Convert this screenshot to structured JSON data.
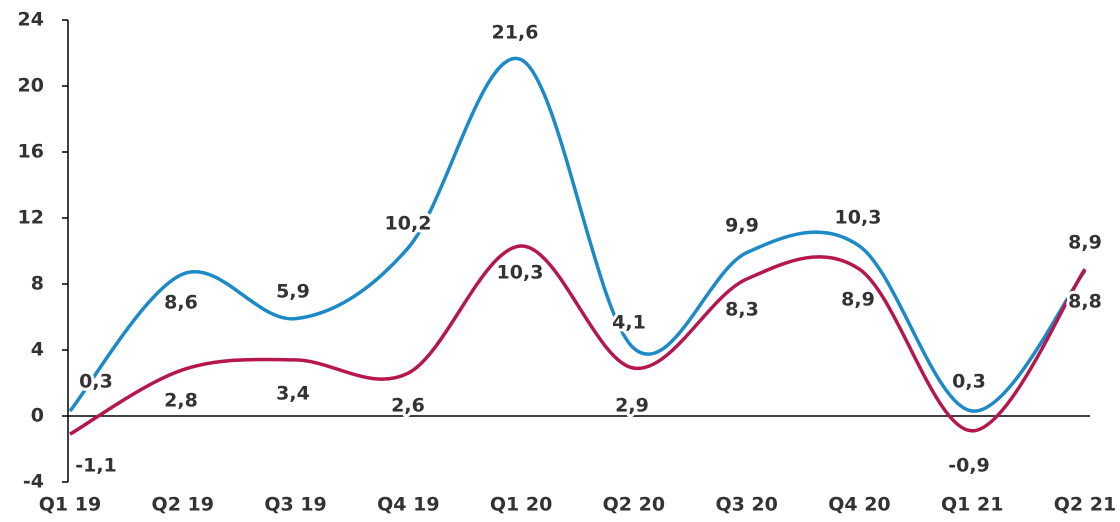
{
  "chart_data": {
    "type": "line",
    "categories": [
      "Q1 19",
      "Q2 19",
      "Q3 19",
      "Q4 19",
      "Q1 20",
      "Q2 20",
      "Q3 20",
      "Q4 20",
      "Q1 21",
      "Q2 21"
    ],
    "series": [
      {
        "name": null,
        "color": "#1b8ac6",
        "values": [
          0.3,
          8.6,
          5.9,
          10.2,
          21.6,
          4.1,
          9.9,
          10.3,
          0.3,
          8.8
        ],
        "value_labels": [
          "0,3",
          "8,6",
          "5,9",
          "10,2",
          "21,6",
          "4,1",
          "9,9",
          "10,3",
          "0,3",
          "8,8"
        ]
      },
      {
        "name": null,
        "color": "#b5174b",
        "values": [
          -1.1,
          2.8,
          3.4,
          2.6,
          10.3,
          2.9,
          8.3,
          8.9,
          -0.9,
          8.9
        ],
        "value_labels": [
          "-1,1",
          "2,8",
          "3,4",
          "2,6",
          "10,3",
          "2,9",
          "8,3",
          "8,9",
          "-0,9",
          "8,9"
        ]
      }
    ],
    "ylim": [
      -4,
      24
    ],
    "yticks": [
      -4,
      0,
      4,
      8,
      12,
      16,
      20,
      24
    ]
  }
}
